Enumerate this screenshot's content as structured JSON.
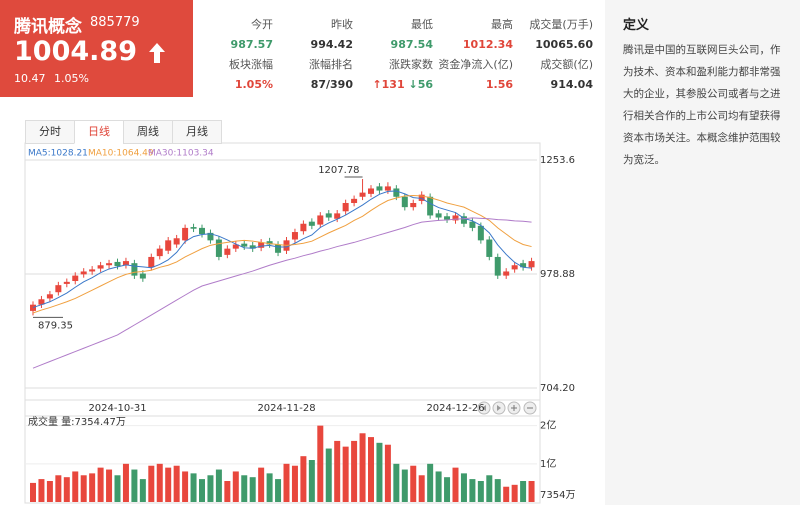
{
  "header": {
    "name": "腾讯概念",
    "code": "885779",
    "price": "1004.89",
    "change": "10.47",
    "change_pct": "1.05%"
  },
  "stats": [
    {
      "label": "今开",
      "value": "987.57"
    },
    {
      "label": "昨收",
      "value": "994.42"
    },
    {
      "label": "最低",
      "value": "987.54"
    },
    {
      "label": "最高",
      "value": "1012.34"
    },
    {
      "label": "成交量(万手)",
      "value": "10065.60"
    },
    {
      "label": "板块涨幅",
      "value": "1.05%"
    },
    {
      "label": "涨幅排名",
      "value": "87/390"
    },
    {
      "label": "涨跌家数",
      "up": "131",
      "down": "56"
    },
    {
      "label": "资金净流入(亿)",
      "value": "1.56"
    },
    {
      "label": "成交额(亿)",
      "value": "914.04"
    }
  ],
  "definition": {
    "title": "定义",
    "text": "腾讯是中国的互联网巨头公司，作为技术、资本和盈利能力都非常强大的企业，其参股公司或者与之进行相关合作的上市公司均有望获得资本市场关注。本概念维护范围较为宽泛。"
  },
  "tabs": [
    "分时",
    "日线",
    "周线",
    "月线"
  ],
  "chart_data": {
    "type": "candlestick",
    "categories": [
      null,
      null,
      null,
      null,
      null,
      null,
      null,
      null,
      null,
      null,
      "2024-10-31",
      null,
      null,
      null,
      null,
      null,
      null,
      null,
      null,
      null,
      null,
      null,
      null,
      null,
      null,
      null,
      null,
      null,
      null,
      null,
      "2024-11-28",
      null,
      null,
      null,
      null,
      null,
      null,
      null,
      null,
      null,
      null,
      null,
      null,
      null,
      null,
      null,
      null,
      null,
      null,
      null,
      "2024-12-26",
      null,
      null,
      null,
      null,
      null,
      null,
      null,
      null,
      null
    ],
    "open": [
      890,
      905,
      920,
      935,
      955,
      962,
      978,
      985,
      992,
      1000,
      1008,
      1000,
      1005,
      980,
      995,
      1022,
      1035,
      1050,
      1060,
      1092,
      1090,
      1078,
      1062,
      1025,
      1040,
      1052,
      1048,
      1042,
      1058,
      1050,
      1035,
      1062,
      1082,
      1105,
      1098,
      1125,
      1112,
      1130,
      1150,
      1165,
      1172,
      1190,
      1180,
      1185,
      1165,
      1140,
      1155,
      1165,
      1125,
      1118,
      1108,
      1118,
      1105,
      1095,
      1062,
      1020,
      975,
      990,
      1005,
      995
    ],
    "high": [
      913,
      926,
      938,
      960,
      968,
      983,
      993,
      998,
      1008,
      1013,
      1016,
      1018,
      1013,
      988,
      1028,
      1048,
      1068,
      1073,
      1098,
      1100,
      1098,
      1086,
      1070,
      1048,
      1058,
      1060,
      1056,
      1063,
      1066,
      1058,
      1068,
      1088,
      1108,
      1113,
      1128,
      1133,
      1133,
      1158,
      1168,
      1207.78,
      1193,
      1198,
      1200,
      1193,
      1173,
      1158,
      1178,
      1173,
      1133,
      1126,
      1128,
      1126,
      1113,
      1103,
      1070,
      1028,
      993,
      1008,
      1013,
      1018
    ],
    "low": [
      879.35,
      897,
      912,
      927,
      947,
      954,
      970,
      977,
      984,
      992,
      990,
      992,
      967,
      960,
      987,
      1014,
      1027,
      1042,
      1052,
      1080,
      1067,
      1052,
      1012,
      1017,
      1032,
      1037,
      1032,
      1034,
      1042,
      1022,
      1027,
      1054,
      1074,
      1087,
      1090,
      1107,
      1104,
      1122,
      1142,
      1157,
      1164,
      1172,
      1172,
      1157,
      1132,
      1132,
      1147,
      1112,
      1107,
      1102,
      1100,
      1092,
      1082,
      1052,
      1012,
      967,
      967,
      982,
      987,
      987
    ],
    "close": [
      905,
      918,
      930,
      952,
      960,
      975,
      985,
      990,
      1000,
      1005,
      998,
      1010,
      975,
      968,
      1020,
      1040,
      1060,
      1065,
      1090,
      1088,
      1075,
      1060,
      1020,
      1040,
      1050,
      1045,
      1040,
      1055,
      1050,
      1030,
      1060,
      1080,
      1100,
      1095,
      1120,
      1115,
      1125,
      1150,
      1160,
      1175,
      1185,
      1180,
      1190,
      1165,
      1140,
      1150,
      1170,
      1120,
      1115,
      1110,
      1120,
      1100,
      1090,
      1060,
      1020,
      975,
      985,
      1000,
      995,
      1010
    ],
    "up_color": "#e8473d",
    "down_color": "#3f9a6b",
    "ma": [
      {
        "name": "MA5:1028.21",
        "color": "#3a78c9",
        "values": [
          898,
          905,
          912,
          922,
          933,
          947,
          960,
          970,
          982,
          991,
          996,
          1001,
          998,
          996,
          994,
          1002,
          1013,
          1031,
          1057,
          1069,
          1074,
          1076,
          1070,
          1061,
          1051,
          1042,
          1041,
          1046,
          1048,
          1044,
          1044,
          1053,
          1064,
          1073,
          1091,
          1102,
          1111,
          1121,
          1133,
          1145,
          1159,
          1171,
          1178,
          1179,
          1172,
          1163,
          1161,
          1149,
          1139,
          1133,
          1127,
          1113,
          1107,
          1096,
          1078,
          1049,
          1026,
          1007,
          995,
          993
        ]
      },
      {
        "name": "MA10:1064.49",
        "color": "#f0a040",
        "values": [
          885,
          892,
          898,
          905,
          912,
          920,
          930,
          940,
          950,
          960,
          970,
          978,
          983,
          985,
          988,
          995,
          1000,
          1008,
          1020,
          1030,
          1040,
          1048,
          1052,
          1055,
          1058,
          1060,
          1058,
          1055,
          1052,
          1050,
          1048,
          1050,
          1053,
          1058,
          1068,
          1078,
          1087,
          1096,
          1108,
          1118,
          1132,
          1145,
          1156,
          1162,
          1167,
          1168,
          1167,
          1163,
          1157,
          1150,
          1145,
          1140,
          1130,
          1120,
          1108,
          1090,
          1075,
          1060,
          1050,
          1045
        ]
      },
      {
        "name": "MA30:1103.34",
        "color": "#b07cc9",
        "values": [
          752,
          760,
          768,
          776,
          784,
          792,
          800,
          808,
          816,
          824,
          832,
          844,
          856,
          868,
          880,
          892,
          904,
          916,
          928,
          940,
          950,
          956,
          962,
          968,
          974,
          980,
          986,
          993,
          1000,
          1006,
          1012,
          1017,
          1023,
          1028,
          1034,
          1039,
          1045,
          1050,
          1055,
          1061,
          1067,
          1073,
          1079,
          1085,
          1091,
          1098,
          1104,
          1106,
          1108,
          1109,
          1111,
          1112,
          1114,
          1113,
          1112,
          1110,
          1109,
          1107,
          1106,
          1104
        ]
      }
    ],
    "ylim": [
      704.2,
      1253.6
    ],
    "yticks": [
      1253.6,
      978.88,
      {
        "value": 704.2,
        "label": "704.20"
      }
    ],
    "volume": {
      "name": "成交量 量:7354.47万",
      "values": [
        0.5,
        0.6,
        0.55,
        0.7,
        0.65,
        0.8,
        0.7,
        0.75,
        0.9,
        0.85,
        0.7,
        1.0,
        0.85,
        0.6,
        0.95,
        1.0,
        0.9,
        0.95,
        0.8,
        0.75,
        0.6,
        0.7,
        0.85,
        0.55,
        0.8,
        0.7,
        0.65,
        0.9,
        0.75,
        0.6,
        1.0,
        0.95,
        1.2,
        1.1,
        2.0,
        1.4,
        1.6,
        1.45,
        1.6,
        1.8,
        1.7,
        1.55,
        1.5,
        1.0,
        0.85,
        0.95,
        0.7,
        1.0,
        0.8,
        0.65,
        0.9,
        0.75,
        0.6,
        0.55,
        0.7,
        0.6,
        0.4,
        0.45,
        0.55,
        0.55
      ],
      "ylim": [
        0,
        2.2
      ],
      "yticks": [
        {
          "value": 2,
          "label": "2亿"
        },
        {
          "value": 1,
          "label": "1亿"
        }
      ],
      "bottom_label": "7354万"
    }
  }
}
